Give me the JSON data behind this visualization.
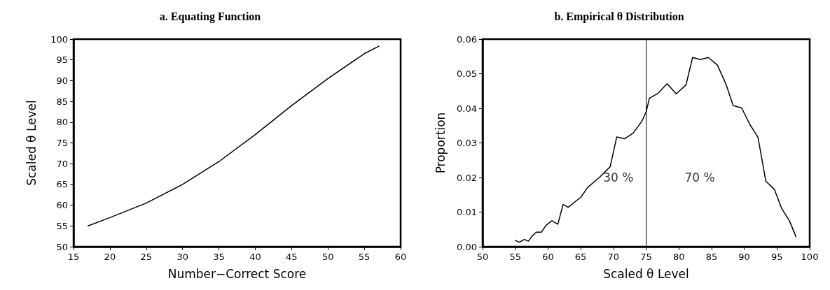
{
  "chart_data": [
    {
      "type": "line",
      "title": "a. Equating Function",
      "xlabel": "Number−Correct Score",
      "ylabel": "Scaled θ Level",
      "x": [
        17,
        20,
        25,
        30,
        35,
        40,
        45,
        50,
        55,
        57
      ],
      "series": [
        {
          "color": "#000000",
          "values": [
            55,
            57,
            60.5,
            65,
            70.5,
            77,
            84,
            90.5,
            96.5,
            98.3
          ]
        }
      ],
      "xlim": [
        15,
        60
      ],
      "xticks": [
        15,
        20,
        25,
        30,
        35,
        40,
        45,
        50,
        55,
        60
      ],
      "ylim": [
        50,
        100
      ],
      "yticks": [
        50,
        55,
        60,
        65,
        70,
        75,
        80,
        85,
        90,
        95,
        100
      ],
      "grid": false,
      "marker": "none",
      "line_style": "solid"
    },
    {
      "type": "line",
      "title": "b. Empirical θ Distribution",
      "xlabel": "Scaled θ Level",
      "ylabel": "Proportion",
      "x": [
        55.0,
        55.6,
        56.4,
        57.0,
        57.5,
        58.2,
        59.0,
        59.7,
        60.6,
        61.5,
        62.3,
        63.1,
        65.0,
        66.1,
        67.9,
        69.5,
        70.5,
        71.7,
        73.0,
        74.4,
        75.0,
        75.5,
        76.8,
        78.2,
        79.6,
        81.1,
        82.1,
        83.3,
        84.5,
        85.9,
        87.2,
        88.3,
        89.6,
        90.9,
        92.1,
        93.3,
        94.6,
        95.7,
        96.9,
        97.9
      ],
      "series": [
        {
          "color": "#000000",
          "values": [
            0.0018,
            0.0013,
            0.0021,
            0.0016,
            0.0029,
            0.0042,
            0.0042,
            0.0062,
            0.0075,
            0.0065,
            0.0122,
            0.0114,
            0.0143,
            0.0172,
            0.0201,
            0.0231,
            0.0317,
            0.0312,
            0.0328,
            0.0364,
            0.039,
            0.0429,
            0.0443,
            0.0471,
            0.0442,
            0.0468,
            0.0547,
            0.0541,
            0.0547,
            0.0525,
            0.047,
            0.0408,
            0.0401,
            0.0352,
            0.0316,
            0.0189,
            0.0166,
            0.0111,
            0.0075,
            0.0029
          ]
        }
      ],
      "xlim": [
        50,
        100
      ],
      "xticks": [
        50,
        55,
        60,
        65,
        70,
        75,
        80,
        85,
        90,
        95,
        100
      ],
      "ylim": [
        0,
        0.06
      ],
      "yticks": [
        {
          "value": 0,
          "label": "0.00"
        },
        {
          "value": 0.01,
          "label": "0.01"
        },
        {
          "value": 0.02,
          "label": "0.02"
        },
        {
          "value": 0.03,
          "label": "0.03"
        },
        {
          "value": 0.04,
          "label": "0.04"
        },
        {
          "value": 0.05,
          "label": "0.05"
        },
        {
          "value": 0.06,
          "label": "0.06"
        }
      ],
      "ref_lines": [
        {
          "axis": "x",
          "value": 75,
          "color": "#000000"
        }
      ],
      "annotations": [
        "30 %",
        "70 %"
      ],
      "grid": false,
      "marker": "none",
      "line_style": "solid"
    }
  ]
}
